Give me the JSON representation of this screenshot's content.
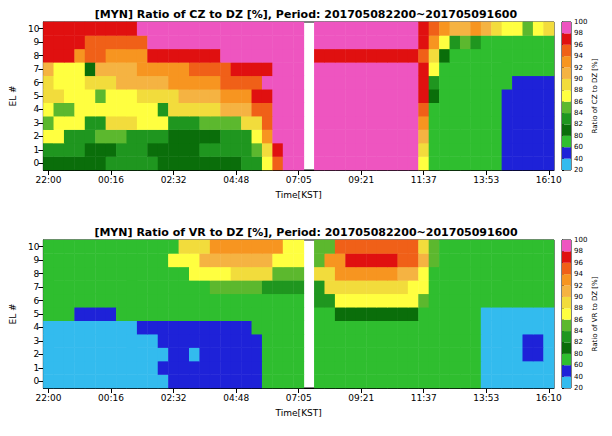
{
  "chart_data": [
    {
      "type": "heatmap",
      "title": "[MYN] Ratio of CZ to DZ [%], Period: 201705082200~201705091600",
      "x_label": "Time[KST]",
      "y_label": "EL #",
      "categories": [
        "22:00",
        null,
        null,
        null,
        null,
        null,
        "00:16",
        null,
        null,
        null,
        null,
        null,
        "02:32",
        null,
        null,
        null,
        null,
        null,
        "04:48",
        null,
        null,
        null,
        null,
        null,
        "07:05",
        null,
        null,
        null,
        null,
        null,
        "09:21",
        null,
        null,
        null,
        null,
        null,
        "11:37",
        null,
        null,
        null,
        null,
        null,
        "13:53",
        null,
        null,
        null,
        null,
        null,
        "16:10"
      ],
      "y": [
        0,
        1,
        2,
        3,
        4,
        5,
        6,
        7,
        8,
        9,
        10
      ],
      "cells": [
        [
          81,
          81,
          81,
          81,
          81,
          81,
          83,
          83,
          83,
          83,
          83,
          81,
          81,
          81,
          81,
          81,
          81,
          81,
          81,
          83,
          83,
          87,
          95,
          99,
          99,
          null,
          99,
          99,
          99,
          99,
          99,
          99,
          99,
          99,
          99,
          99,
          87,
          70,
          70,
          70,
          70,
          70,
          70,
          70,
          50,
          50,
          50,
          50,
          50
        ],
        [
          83,
          83,
          83,
          83,
          81,
          81,
          81,
          83,
          83,
          83,
          81,
          81,
          81,
          81,
          81,
          83,
          83,
          83,
          83,
          83,
          85,
          89,
          97,
          99,
          99,
          null,
          99,
          99,
          99,
          99,
          99,
          99,
          99,
          99,
          99,
          99,
          89,
          70,
          70,
          70,
          70,
          70,
          70,
          70,
          50,
          50,
          50,
          50,
          50
        ],
        [
          87,
          87,
          83,
          83,
          83,
          85,
          85,
          85,
          83,
          83,
          83,
          83,
          81,
          81,
          81,
          81,
          81,
          83,
          83,
          83,
          87,
          93,
          99,
          99,
          99,
          null,
          99,
          99,
          99,
          99,
          99,
          99,
          99,
          99,
          99,
          99,
          91,
          70,
          70,
          70,
          70,
          70,
          70,
          70,
          50,
          50,
          50,
          50,
          50
        ],
        [
          85,
          87,
          87,
          87,
          83,
          83,
          89,
          89,
          89,
          87,
          87,
          87,
          83,
          83,
          83,
          85,
          85,
          85,
          85,
          89,
          89,
          95,
          99,
          99,
          99,
          null,
          99,
          99,
          99,
          99,
          99,
          99,
          99,
          99,
          99,
          99,
          93,
          70,
          70,
          70,
          70,
          70,
          70,
          70,
          50,
          50,
          50,
          50,
          50
        ],
        [
          87,
          85,
          85,
          87,
          87,
          87,
          87,
          87,
          87,
          87,
          87,
          83,
          89,
          89,
          89,
          89,
          89,
          91,
          91,
          91,
          95,
          95,
          99,
          99,
          99,
          null,
          99,
          99,
          99,
          99,
          99,
          99,
          99,
          99,
          99,
          99,
          95,
          70,
          70,
          70,
          70,
          70,
          70,
          70,
          50,
          50,
          50,
          50,
          50
        ],
        [
          89,
          89,
          87,
          87,
          87,
          85,
          87,
          87,
          87,
          89,
          89,
          89,
          89,
          91,
          91,
          91,
          91,
          93,
          93,
          93,
          97,
          97,
          99,
          99,
          99,
          null,
          99,
          99,
          99,
          99,
          99,
          99,
          99,
          99,
          99,
          99,
          97,
          81,
          70,
          70,
          70,
          70,
          70,
          70,
          50,
          50,
          50,
          50,
          50
        ],
        [
          89,
          87,
          87,
          87,
          89,
          89,
          89,
          91,
          91,
          91,
          91,
          91,
          93,
          93,
          93,
          93,
          93,
          95,
          95,
          95,
          95,
          99,
          99,
          99,
          99,
          null,
          99,
          99,
          99,
          99,
          99,
          99,
          99,
          99,
          99,
          99,
          97,
          83,
          70,
          70,
          70,
          70,
          70,
          70,
          70,
          50,
          50,
          50,
          50
        ],
        [
          91,
          87,
          87,
          87,
          81,
          91,
          91,
          91,
          91,
          93,
          93,
          93,
          93,
          93,
          95,
          95,
          95,
          95,
          97,
          97,
          97,
          97,
          99,
          99,
          99,
          null,
          99,
          99,
          99,
          99,
          99,
          99,
          99,
          99,
          99,
          99,
          97,
          87,
          70,
          70,
          70,
          70,
          70,
          70,
          70,
          70,
          70,
          70,
          70
        ],
        [
          97,
          97,
          97,
          93,
          95,
          95,
          93,
          93,
          93,
          93,
          97,
          97,
          97,
          97,
          97,
          97,
          97,
          99,
          99,
          99,
          99,
          99,
          99,
          99,
          99,
          null,
          97,
          97,
          97,
          97,
          97,
          97,
          97,
          97,
          97,
          97,
          95,
          89,
          81,
          70,
          70,
          70,
          70,
          70,
          70,
          70,
          70,
          70,
          70
        ],
        [
          97,
          97,
          97,
          97,
          95,
          95,
          95,
          95,
          95,
          95,
          99,
          99,
          99,
          99,
          99,
          99,
          99,
          99,
          99,
          99,
          99,
          99,
          99,
          99,
          99,
          null,
          99,
          99,
          99,
          99,
          99,
          99,
          99,
          99,
          99,
          99,
          97,
          93,
          87,
          83,
          85,
          83,
          70,
          70,
          70,
          70,
          70,
          70,
          70
        ],
        [
          97,
          97,
          97,
          97,
          97,
          97,
          97,
          97,
          97,
          99,
          99,
          99,
          99,
          99,
          99,
          99,
          99,
          99,
          99,
          99,
          99,
          99,
          99,
          99,
          99,
          null,
          99,
          99,
          99,
          99,
          99,
          99,
          99,
          99,
          99,
          99,
          97,
          95,
          93,
          91,
          91,
          93,
          91,
          89,
          87,
          87,
          85,
          87,
          89
        ]
      ],
      "colorbar": {
        "label": "Ratio of CZ to DZ [%]",
        "bounds": [
          20,
          40,
          60,
          80,
          82,
          84,
          86,
          88,
          90,
          92,
          94,
          96,
          98,
          100
        ],
        "colors": [
          "#33bbee",
          "#1e22d8",
          "#2fbe2f",
          "#0a6e0a",
          "#1f961f",
          "#5cb82e",
          "#ffff40",
          "#f2dc3c",
          "#f5b342",
          "#f79520",
          "#f06018",
          "#e01010",
          "#ee55c0"
        ]
      }
    },
    {
      "type": "heatmap",
      "title": "[MYN] Ratio of VR to DZ [%], Period: 201705082200~201705091600",
      "x_label": "Time[KST]",
      "y_label": "EL #",
      "categories": [
        "22:00",
        null,
        null,
        null,
        null,
        null,
        "00:16",
        null,
        null,
        null,
        null,
        null,
        "02:32",
        null,
        null,
        null,
        null,
        null,
        "04:48",
        null,
        null,
        null,
        null,
        null,
        "07:05",
        null,
        null,
        null,
        null,
        null,
        "09:21",
        null,
        null,
        null,
        null,
        null,
        "11:37",
        null,
        null,
        null,
        null,
        null,
        "13:53",
        null,
        null,
        null,
        null,
        null,
        "16:10"
      ],
      "y": [
        0,
        1,
        2,
        3,
        4,
        5,
        6,
        7,
        8,
        9,
        10
      ],
      "cells": [
        [
          30,
          30,
          30,
          30,
          30,
          30,
          30,
          30,
          30,
          30,
          30,
          30,
          50,
          50,
          50,
          50,
          50,
          50,
          50,
          50,
          50,
          70,
          70,
          70,
          70,
          null,
          70,
          70,
          70,
          70,
          70,
          70,
          70,
          70,
          70,
          70,
          70,
          70,
          70,
          70,
          70,
          70,
          30,
          30,
          30,
          30,
          30,
          30,
          30
        ],
        [
          30,
          30,
          30,
          30,
          30,
          30,
          30,
          30,
          30,
          30,
          30,
          50,
          50,
          50,
          50,
          50,
          50,
          50,
          50,
          50,
          50,
          70,
          70,
          70,
          70,
          null,
          70,
          70,
          70,
          70,
          70,
          70,
          70,
          70,
          70,
          70,
          70,
          70,
          70,
          70,
          70,
          70,
          30,
          30,
          30,
          30,
          30,
          30,
          30
        ],
        [
          30,
          30,
          30,
          30,
          30,
          30,
          30,
          30,
          30,
          30,
          30,
          30,
          50,
          50,
          30,
          50,
          50,
          50,
          50,
          50,
          50,
          70,
          70,
          70,
          70,
          null,
          70,
          70,
          70,
          70,
          70,
          70,
          70,
          70,
          70,
          70,
          70,
          70,
          70,
          70,
          70,
          70,
          30,
          30,
          30,
          30,
          50,
          50,
          30
        ],
        [
          30,
          30,
          30,
          30,
          30,
          30,
          30,
          30,
          30,
          30,
          30,
          50,
          50,
          50,
          50,
          50,
          50,
          50,
          50,
          50,
          50,
          70,
          70,
          70,
          70,
          null,
          70,
          70,
          70,
          70,
          70,
          70,
          70,
          70,
          70,
          70,
          70,
          70,
          70,
          70,
          70,
          70,
          30,
          30,
          30,
          30,
          50,
          50,
          30
        ],
        [
          30,
          30,
          30,
          30,
          30,
          30,
          30,
          30,
          30,
          50,
          50,
          50,
          50,
          50,
          50,
          50,
          50,
          50,
          50,
          50,
          70,
          70,
          70,
          70,
          70,
          null,
          70,
          70,
          70,
          70,
          70,
          70,
          70,
          70,
          70,
          70,
          70,
          70,
          70,
          70,
          70,
          70,
          30,
          30,
          30,
          30,
          30,
          30,
          30
        ],
        [
          70,
          70,
          70,
          50,
          50,
          50,
          50,
          70,
          70,
          70,
          70,
          70,
          70,
          70,
          70,
          70,
          70,
          70,
          70,
          70,
          70,
          70,
          70,
          70,
          70,
          null,
          70,
          70,
          81,
          81,
          81,
          81,
          81,
          81,
          81,
          81,
          70,
          70,
          70,
          70,
          70,
          70,
          30,
          30,
          30,
          30,
          30,
          30,
          30
        ],
        [
          70,
          70,
          70,
          70,
          70,
          70,
          70,
          70,
          70,
          70,
          70,
          70,
          70,
          70,
          70,
          70,
          70,
          70,
          70,
          70,
          70,
          70,
          70,
          70,
          70,
          null,
          83,
          83,
          87,
          87,
          87,
          87,
          87,
          87,
          87,
          87,
          85,
          70,
          70,
          70,
          70,
          70,
          70,
          70,
          70,
          70,
          70,
          70,
          70
        ],
        [
          70,
          70,
          70,
          70,
          70,
          70,
          70,
          70,
          70,
          70,
          70,
          70,
          70,
          70,
          70,
          70,
          85,
          85,
          85,
          85,
          85,
          83,
          83,
          83,
          83,
          null,
          83,
          89,
          89,
          89,
          89,
          89,
          89,
          89,
          89,
          87,
          87,
          70,
          70,
          70,
          70,
          70,
          70,
          70,
          70,
          70,
          70,
          70,
          70
        ],
        [
          70,
          70,
          70,
          70,
          70,
          70,
          70,
          70,
          70,
          70,
          70,
          70,
          70,
          70,
          87,
          87,
          87,
          87,
          89,
          89,
          89,
          89,
          85,
          85,
          85,
          null,
          89,
          89,
          93,
          93,
          93,
          93,
          93,
          93,
          91,
          91,
          87,
          70,
          70,
          70,
          70,
          70,
          70,
          70,
          70,
          70,
          70,
          70,
          70
        ],
        [
          70,
          70,
          70,
          70,
          70,
          70,
          70,
          70,
          70,
          70,
          70,
          70,
          87,
          87,
          87,
          91,
          91,
          91,
          91,
          91,
          91,
          91,
          87,
          87,
          87,
          null,
          85,
          93,
          93,
          97,
          97,
          97,
          97,
          97,
          95,
          95,
          91,
          85,
          70,
          70,
          70,
          70,
          70,
          70,
          70,
          70,
          70,
          70,
          70
        ],
        [
          70,
          70,
          70,
          70,
          70,
          70,
          70,
          70,
          70,
          70,
          70,
          70,
          70,
          89,
          89,
          89,
          93,
          93,
          93,
          93,
          93,
          93,
          93,
          87,
          87,
          null,
          85,
          85,
          95,
          95,
          95,
          95,
          95,
          95,
          95,
          95,
          89,
          85,
          70,
          70,
          70,
          70,
          70,
          70,
          70,
          70,
          70,
          70,
          70
        ]
      ],
      "colorbar": {
        "label": "Ratio of VR to DZ [%]",
        "bounds": [
          20,
          40,
          60,
          80,
          82,
          84,
          86,
          88,
          90,
          92,
          94,
          96,
          98,
          100
        ],
        "colors": [
          "#33bbee",
          "#1e22d8",
          "#2fbe2f",
          "#0a6e0a",
          "#1f961f",
          "#5cb82e",
          "#ffff40",
          "#f2dc3c",
          "#f5b342",
          "#f79520",
          "#f06018",
          "#e01010",
          "#ee55c0"
        ]
      }
    }
  ]
}
